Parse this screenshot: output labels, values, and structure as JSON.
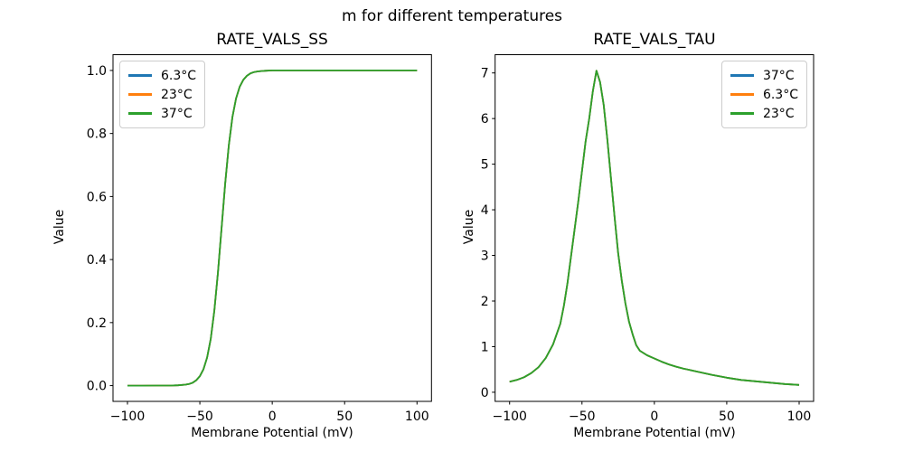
{
  "suptitle": "m for different temperatures",
  "chart_data": [
    {
      "type": "line",
      "title": "RATE_VALS_SS",
      "xlabel": "Membrane Potential (mV)",
      "ylabel": "Value",
      "xlim": [
        -110,
        110
      ],
      "ylim": [
        -0.05,
        1.05
      ],
      "xticks": {
        "values": [
          -100,
          -50,
          0,
          50,
          100
        ],
        "labels": [
          "−100",
          "−50",
          "0",
          "50",
          "100"
        ]
      },
      "yticks": {
        "values": [
          0.0,
          0.2,
          0.4,
          0.6,
          0.8,
          1.0
        ],
        "labels": [
          "0.0",
          "0.2",
          "0.4",
          "0.6",
          "0.8",
          "1.0"
        ]
      },
      "grid": false,
      "legend_position": "upper left",
      "series": [
        {
          "name": "6.3°C",
          "color": "#1f77b4"
        },
        {
          "name": "23°C",
          "color": "#ff7f0e"
        },
        {
          "name": "37°C",
          "color": "#2ca02c"
        }
      ],
      "series_note": "All three temperature curves coincide exactly; only the last-drawn green curve is visible. Sigmoid steady-state activation, half-maximum near −35 mV.",
      "x": [
        -100,
        -90,
        -80,
        -70,
        -65,
        -60,
        -57.5,
        -55,
        -52.5,
        -50,
        -47.5,
        -45,
        -42.5,
        -40,
        -37.5,
        -35,
        -32.5,
        -30,
        -27.5,
        -25,
        -22.5,
        -20,
        -17.5,
        -15,
        -12.5,
        -10,
        -7.5,
        -5,
        0,
        10,
        20,
        30,
        40,
        50,
        60,
        70,
        80,
        90,
        100
      ],
      "values": [
        0.0,
        0.0,
        0.0001,
        0.0003,
        0.001,
        0.003,
        0.005,
        0.009,
        0.017,
        0.03,
        0.052,
        0.089,
        0.148,
        0.238,
        0.359,
        0.5,
        0.641,
        0.762,
        0.852,
        0.911,
        0.948,
        0.97,
        0.983,
        0.991,
        0.995,
        0.997,
        0.998,
        0.999,
        1.0,
        1.0,
        1.0,
        1.0,
        1.0,
        1.0,
        1.0,
        1.0,
        1.0,
        1.0,
        1.0
      ]
    },
    {
      "type": "line",
      "title": "RATE_VALS_TAU",
      "xlabel": "Membrane Potential (mV)",
      "ylabel": "Value",
      "xlim": [
        -110,
        110
      ],
      "ylim": [
        -0.2,
        7.4
      ],
      "xticks": {
        "values": [
          -100,
          -50,
          0,
          50,
          100
        ],
        "labels": [
          "−100",
          "−50",
          "0",
          "50",
          "100"
        ]
      },
      "yticks": {
        "values": [
          0,
          1,
          2,
          3,
          4,
          5,
          6,
          7
        ],
        "labels": [
          "0",
          "1",
          "2",
          "3",
          "4",
          "5",
          "6",
          "7"
        ]
      },
      "grid": false,
      "legend_position": "upper right",
      "series": [
        {
          "name": "37°C",
          "color": "#1f77b4"
        },
        {
          "name": "6.3°C",
          "color": "#ff7f0e"
        },
        {
          "name": "23°C",
          "color": "#2ca02c"
        }
      ],
      "series_note": "All three temperature curves coincide exactly; only the last-drawn green curve is visible. Time-constant curve peaking at ≈7.05 near −40 mV.",
      "x": [
        -100,
        -95,
        -90,
        -85,
        -80,
        -75,
        -70,
        -65,
        -62.5,
        -60,
        -57.5,
        -55,
        -52.5,
        -50,
        -47.5,
        -45,
        -42.5,
        -40,
        -37.5,
        -35,
        -32.5,
        -30,
        -27.5,
        -25,
        -22.5,
        -20,
        -17.5,
        -15,
        -12.5,
        -10,
        -5,
        0,
        5,
        10,
        15,
        20,
        30,
        40,
        50,
        60,
        70,
        80,
        90,
        100
      ],
      "values": [
        0.23,
        0.27,
        0.33,
        0.42,
        0.55,
        0.75,
        1.05,
        1.5,
        1.9,
        2.4,
        3.0,
        3.6,
        4.2,
        4.85,
        5.5,
        6.0,
        6.6,
        7.05,
        6.8,
        6.3,
        5.55,
        4.7,
        3.85,
        3.05,
        2.45,
        1.95,
        1.55,
        1.27,
        1.03,
        0.91,
        0.81,
        0.74,
        0.67,
        0.61,
        0.56,
        0.52,
        0.45,
        0.38,
        0.32,
        0.27,
        0.24,
        0.21,
        0.18,
        0.16
      ]
    }
  ]
}
